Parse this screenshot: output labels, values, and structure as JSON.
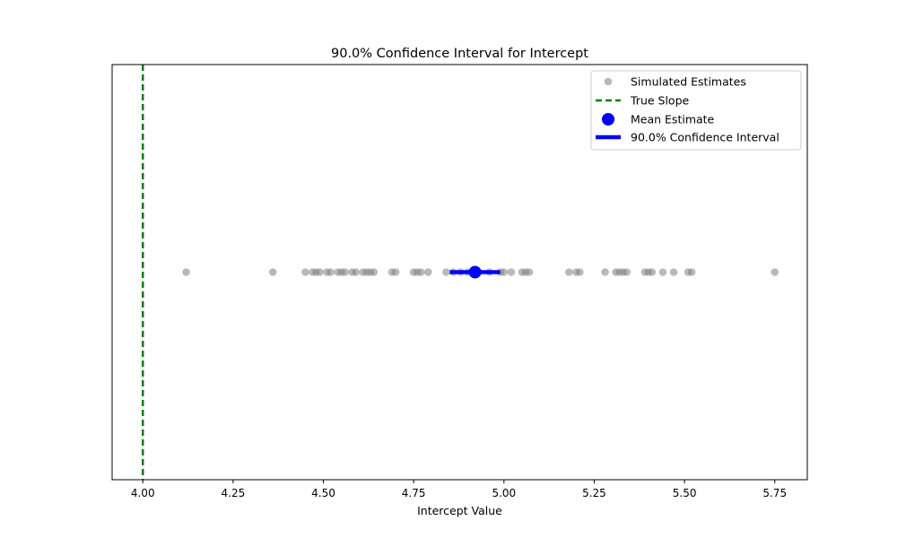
{
  "chart_data": {
    "type": "scatter",
    "title": "90.0% Confidence Interval for Intercept",
    "xlabel": "Intercept Value",
    "ylabel": "",
    "xlim": [
      3.915,
      5.84
    ],
    "ylim": [
      -1,
      1
    ],
    "grid": false,
    "legend_position": "top-right",
    "x_ticks": [
      "4.00",
      "4.25",
      "4.50",
      "4.75",
      "5.00",
      "5.25",
      "5.50",
      "5.75"
    ],
    "x_tick_values": [
      4.0,
      4.25,
      4.5,
      4.75,
      5.0,
      5.25,
      5.5,
      5.75
    ],
    "series": [
      {
        "name": "Simulated Estimates",
        "kind": "scatter",
        "color": "#808080",
        "y": 0,
        "x": [
          4.12,
          4.36,
          4.45,
          4.47,
          4.48,
          4.49,
          4.51,
          4.52,
          4.54,
          4.55,
          4.56,
          4.58,
          4.59,
          4.61,
          4.62,
          4.63,
          4.64,
          4.69,
          4.7,
          4.75,
          4.76,
          4.77,
          4.79,
          4.84,
          4.86,
          4.88,
          4.9,
          4.93,
          4.96,
          4.99,
          5.0,
          5.02,
          5.05,
          5.06,
          5.07,
          5.18,
          5.2,
          5.21,
          5.28,
          5.31,
          5.32,
          5.33,
          5.34,
          5.39,
          5.4,
          5.41,
          5.44,
          5.47,
          5.51,
          5.52,
          5.75
        ]
      },
      {
        "name": "True Slope",
        "kind": "vline",
        "color": "#008000",
        "x": 4.0
      },
      {
        "name": "Mean Estimate",
        "kind": "point",
        "color": "#0000ff",
        "x": 4.92,
        "y": 0
      },
      {
        "name": "90.0% Confidence Interval",
        "kind": "interval",
        "color": "#0000ff",
        "x_low": 4.85,
        "x_high": 4.99,
        "y": 0
      }
    ]
  }
}
